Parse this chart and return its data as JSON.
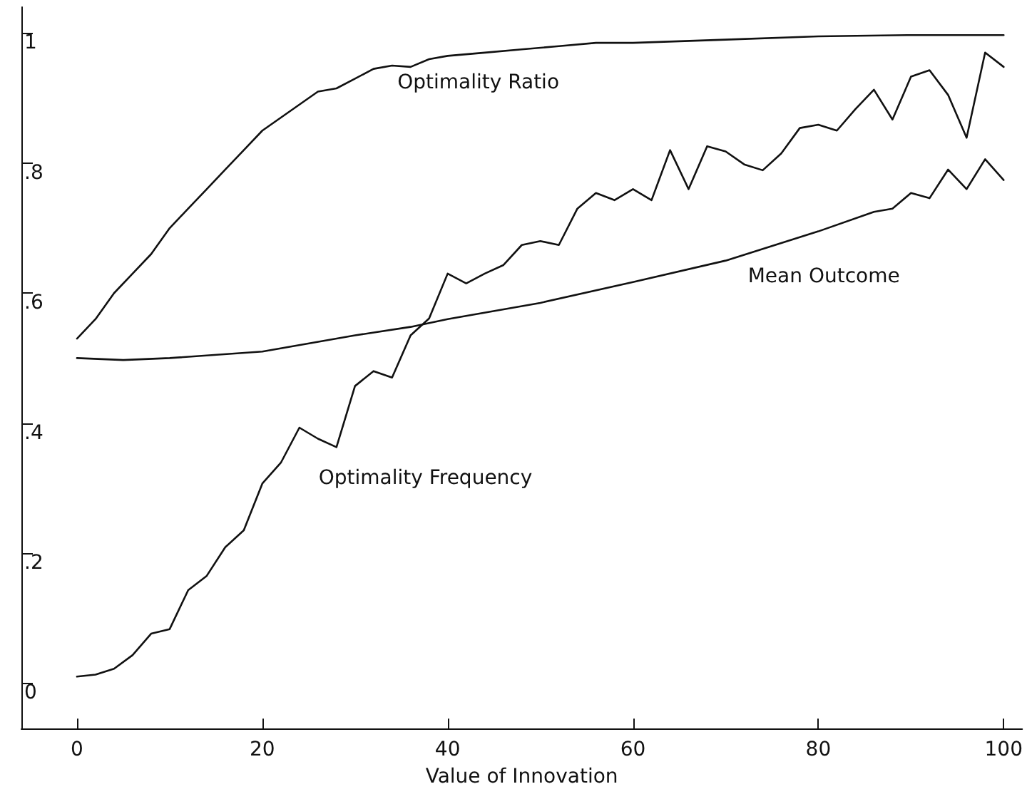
{
  "chart_data": {
    "type": "line",
    "xlabel": "Value of Innovation",
    "xlim": [
      -6,
      102
    ],
    "xticks": [
      0,
      20,
      40,
      60,
      80,
      100
    ],
    "ylim": [
      -0.07,
      1.04
    ],
    "yticks": [
      {
        "value": 0,
        "label": "0"
      },
      {
        "value": 0.2,
        "label": ".2"
      },
      {
        "value": 0.4,
        "label": ".4"
      },
      {
        "value": 0.6,
        "label": ".6"
      },
      {
        "value": 0.8,
        "label": ".8"
      },
      {
        "value": 1,
        "label": "1"
      }
    ],
    "grid": false,
    "legend": false,
    "marker": "none",
    "line_style": "solid",
    "series": [
      {
        "name": "Optimality Ratio",
        "color": "#111111",
        "x": [
          0,
          2,
          4,
          6,
          8,
          10,
          12,
          14,
          16,
          18,
          20,
          22,
          24,
          26,
          28,
          30,
          32,
          34,
          36,
          38,
          40,
          44,
          48,
          52,
          56,
          60,
          70,
          80,
          90,
          100
        ],
        "values": [
          0.53,
          0.56,
          0.6,
          0.63,
          0.66,
          0.7,
          0.73,
          0.76,
          0.79,
          0.82,
          0.85,
          0.87,
          0.89,
          0.91,
          0.915,
          0.93,
          0.945,
          0.95,
          0.948,
          0.96,
          0.965,
          0.97,
          0.975,
          0.98,
          0.985,
          0.985,
          0.99,
          0.995,
          0.997,
          0.997
        ]
      },
      {
        "name": "Mean Outcome",
        "color": "#111111",
        "x": [
          0,
          5,
          10,
          20,
          30,
          36,
          40,
          50,
          60,
          70,
          80,
          86,
          88,
          90,
          92,
          94,
          96,
          98,
          100
        ],
        "values": [
          0.5,
          0.497,
          0.5,
          0.51,
          0.535,
          0.548,
          0.56,
          0.585,
          0.617,
          0.65,
          0.695,
          0.725,
          0.73,
          0.754,
          0.746,
          0.79,
          0.76,
          0.806,
          0.774
        ]
      },
      {
        "name": "Optimality Frequency",
        "color": "#111111",
        "x": [
          0,
          2,
          4,
          6,
          8,
          10,
          12,
          14,
          16,
          18,
          20,
          22,
          24,
          26,
          28,
          30,
          32,
          34,
          36,
          38,
          40,
          42,
          44,
          46,
          48,
          50,
          52,
          54,
          56,
          58,
          60,
          62,
          64,
          66,
          68,
          70,
          72,
          74,
          76,
          78,
          80,
          82,
          84,
          86,
          88,
          90,
          92,
          94,
          96,
          98,
          100
        ],
        "values": [
          0.01,
          0.013,
          0.022,
          0.043,
          0.076,
          0.083,
          0.143,
          0.165,
          0.209,
          0.235,
          0.307,
          0.339,
          0.393,
          0.376,
          0.363,
          0.457,
          0.48,
          0.47,
          0.535,
          0.561,
          0.63,
          0.615,
          0.63,
          0.643,
          0.674,
          0.68,
          0.674,
          0.73,
          0.754,
          0.743,
          0.76,
          0.743,
          0.82,
          0.76,
          0.826,
          0.818,
          0.798,
          0.789,
          0.815,
          0.854,
          0.859,
          0.85,
          0.883,
          0.913,
          0.867,
          0.933,
          0.943,
          0.905,
          0.839,
          0.97,
          0.948
        ]
      }
    ]
  }
}
